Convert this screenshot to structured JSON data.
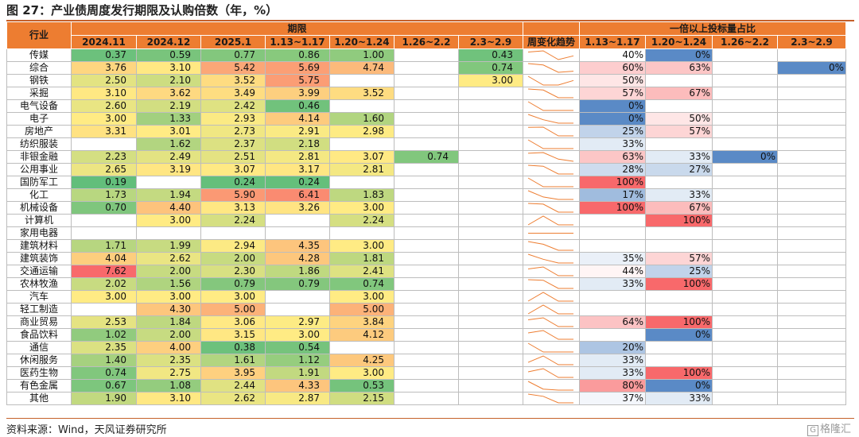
{
  "title": "图 27：产业债周度发行期限及认购倍数（年，%）",
  "source": "资料来源：Wind，天风证券研究所",
  "logo": "格隆汇",
  "logo_mark": "G",
  "header": {
    "industry": "行业",
    "term_group": "期限",
    "trend": "周变化趋势",
    "ratio_group": "一倍以上投标量占比",
    "term_cols": [
      "2024.11",
      "2024.12",
      "2025.1",
      "1.13~1.17",
      "1.20~1.24",
      "1.26~2.2",
      "2.3~2.9"
    ],
    "ratio_cols": [
      "1.13~1.17",
      "1.20~1.24",
      "1.26~2.2",
      "2.3~2.9"
    ]
  },
  "rows": [
    {
      "name": "传媒",
      "terms": [
        "0.37",
        "0.59",
        "0.77",
        "0.86",
        "1.00",
        "",
        "0.43"
      ],
      "ratios": [
        "40%",
        "0%",
        "",
        ""
      ]
    },
    {
      "name": "综合",
      "terms": [
        "3.76",
        "3.10",
        "5.42",
        "5.69",
        "4.74",
        "",
        "0.74"
      ],
      "ratios": [
        "60%",
        "63%",
        "",
        "0%"
      ]
    },
    {
      "name": "钢铁",
      "terms": [
        "2.50",
        "2.10",
        "3.52",
        "5.75",
        "",
        "",
        "3.00"
      ],
      "ratios": [
        "50%",
        "",
        "",
        ""
      ]
    },
    {
      "name": "采掘",
      "terms": [
        "3.10",
        "3.62",
        "3.49",
        "3.99",
        "3.52",
        "",
        ""
      ],
      "ratios": [
        "57%",
        "67%",
        "",
        ""
      ]
    },
    {
      "name": "电气设备",
      "terms": [
        "2.60",
        "2.19",
        "2.42",
        "0.46",
        "",
        "",
        ""
      ],
      "ratios": [
        "0%",
        "",
        "",
        ""
      ]
    },
    {
      "name": "电子",
      "terms": [
        "3.00",
        "1.33",
        "2.93",
        "4.14",
        "1.60",
        "",
        ""
      ],
      "ratios": [
        "0%",
        "50%",
        "",
        ""
      ]
    },
    {
      "name": "房地产",
      "terms": [
        "3.31",
        "3.01",
        "2.73",
        "2.91",
        "2.98",
        "",
        ""
      ],
      "ratios": [
        "25%",
        "57%",
        "",
        ""
      ]
    },
    {
      "name": "纺织服装",
      "terms": [
        "",
        "1.62",
        "2.37",
        "2.18",
        "",
        "",
        ""
      ],
      "ratios": [
        "33%",
        "",
        "",
        ""
      ]
    },
    {
      "name": "非银金融",
      "terms": [
        "2.23",
        "2.49",
        "2.51",
        "2.81",
        "3.07",
        "0.74",
        ""
      ],
      "ratios": [
        "63%",
        "33%",
        "0%",
        ""
      ]
    },
    {
      "name": "公用事业",
      "terms": [
        "2.65",
        "3.19",
        "3.07",
        "3.17",
        "2.81",
        "",
        ""
      ],
      "ratios": [
        "28%",
        "27%",
        "",
        ""
      ]
    },
    {
      "name": "国防军工",
      "terms": [
        "0.19",
        "",
        "0.24",
        "0.24",
        "",
        "",
        ""
      ],
      "ratios": [
        "100%",
        "",
        "",
        ""
      ]
    },
    {
      "name": "化工",
      "terms": [
        "1.73",
        "1.94",
        "5.90",
        "6.41",
        "1.83",
        "",
        ""
      ],
      "ratios": [
        "17%",
        "33%",
        "",
        ""
      ]
    },
    {
      "name": "机械设备",
      "terms": [
        "0.70",
        "4.40",
        "3.13",
        "3.26",
        "3.00",
        "",
        ""
      ],
      "ratios": [
        "100%",
        "67%",
        "",
        ""
      ]
    },
    {
      "name": "计算机",
      "terms": [
        "",
        "3.00",
        "2.24",
        "",
        "2.24",
        "",
        ""
      ],
      "ratios": [
        "",
        "100%",
        "",
        ""
      ]
    },
    {
      "name": "家用电器",
      "terms": [
        "",
        "",
        "",
        "",
        "",
        "",
        ""
      ],
      "ratios": [
        "",
        "",
        "",
        ""
      ]
    },
    {
      "name": "建筑材料",
      "terms": [
        "1.71",
        "1.99",
        "2.94",
        "4.35",
        "3.00",
        "",
        ""
      ],
      "ratios": [
        "",
        "",
        "",
        ""
      ]
    },
    {
      "name": "建筑装饰",
      "terms": [
        "4.04",
        "2.62",
        "2.00",
        "4.28",
        "1.81",
        "",
        ""
      ],
      "ratios": [
        "35%",
        "57%",
        "",
        ""
      ]
    },
    {
      "name": "交通运输",
      "terms": [
        "7.62",
        "2.00",
        "2.30",
        "1.86",
        "2.41",
        "",
        ""
      ],
      "ratios": [
        "44%",
        "25%",
        "",
        ""
      ]
    },
    {
      "name": "农林牧渔",
      "terms": [
        "2.02",
        "1.56",
        "0.79",
        "0.79",
        "0.74",
        "",
        ""
      ],
      "ratios": [
        "33%",
        "100%",
        "",
        ""
      ]
    },
    {
      "name": "汽车",
      "terms": [
        "3.00",
        "3.00",
        "3.00",
        "",
        "3.00",
        "",
        ""
      ],
      "ratios": [
        "",
        "",
        "",
        ""
      ]
    },
    {
      "name": "轻工制造",
      "terms": [
        "",
        "4.30",
        "5.00",
        "",
        "5.00",
        "",
        ""
      ],
      "ratios": [
        "",
        "",
        "",
        ""
      ]
    },
    {
      "name": "商业贸易",
      "terms": [
        "2.53",
        "1.84",
        "3.06",
        "2.97",
        "3.84",
        "",
        ""
      ],
      "ratios": [
        "64%",
        "100%",
        "",
        ""
      ]
    },
    {
      "name": "食品饮料",
      "terms": [
        "1.02",
        "2.00",
        "3.15",
        "3.00",
        "4.12",
        "",
        ""
      ],
      "ratios": [
        "",
        "0%",
        "",
        ""
      ]
    },
    {
      "name": "通信",
      "terms": [
        "2.35",
        "4.00",
        "0.38",
        "0.54",
        "",
        "",
        ""
      ],
      "ratios": [
        "20%",
        "",
        "",
        ""
      ]
    },
    {
      "name": "休闲服务",
      "terms": [
        "1.40",
        "2.35",
        "1.61",
        "1.12",
        "4.25",
        "",
        ""
      ],
      "ratios": [
        "33%",
        "",
        "",
        ""
      ]
    },
    {
      "name": "医药生物",
      "terms": [
        "0.74",
        "2.75",
        "3.95",
        "1.91",
        "3.00",
        "",
        ""
      ],
      "ratios": [
        "33%",
        "100%",
        "",
        ""
      ]
    },
    {
      "name": "有色金属",
      "terms": [
        "0.67",
        "1.08",
        "2.44",
        "4.33",
        "0.53",
        "",
        ""
      ],
      "ratios": [
        "80%",
        "0%",
        "",
        ""
      ]
    },
    {
      "name": "其他",
      "terms": [
        "1.90",
        "3.10",
        "2.62",
        "2.87",
        "2.15",
        "",
        ""
      ],
      "ratios": [
        "37%",
        "33%",
        "",
        ""
      ]
    }
  ],
  "colors": {
    "header": "#ed7d31",
    "heat_low": "#63be7b",
    "heat_mid": "#ffeb84",
    "heat_high": "#f8696b",
    "ratio_low": "#5a8ac6",
    "ratio_mid": "#ffffff",
    "ratio_high": "#f8696b",
    "sparkline": "#ed7d31"
  }
}
